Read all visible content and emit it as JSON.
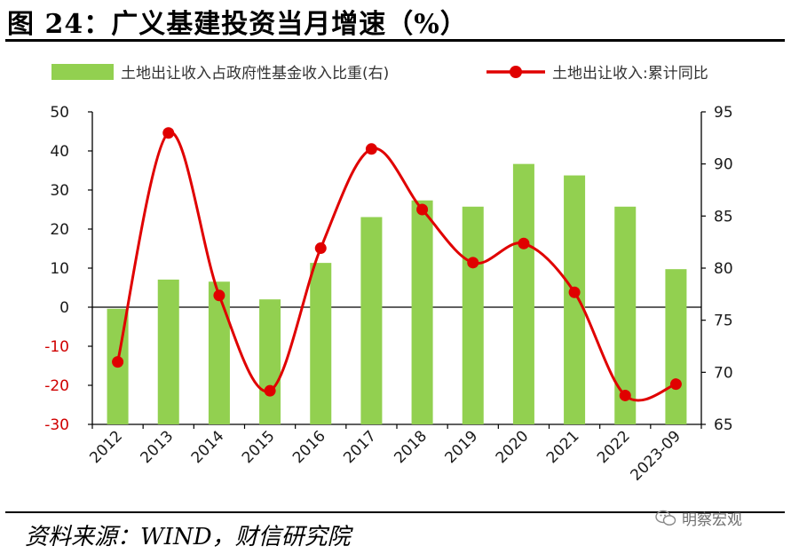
{
  "title": "图 24：广义基建投资当月增速（%）",
  "source": "资料来源：WIND，财信研究院",
  "watermark": "明察宏观",
  "colors": {
    "bar": "#92d050",
    "line": "#e00000",
    "negative_tick": "#d00000",
    "axis": "#000000"
  },
  "chart_data": {
    "type": "bar+line",
    "categories": [
      "2012",
      "2013",
      "2014",
      "2015",
      "2016",
      "2017",
      "2018",
      "2019",
      "2020",
      "2021",
      "2022",
      "2023-09"
    ],
    "series": [
      {
        "name": "土地出让收入占政府性基金收入比重(右)",
        "type": "bar",
        "axis": "right",
        "values": [
          76.1,
          78.9,
          78.7,
          77.0,
          80.5,
          84.9,
          86.5,
          85.9,
          90.0,
          88.9,
          85.9,
          79.9
        ]
      },
      {
        "name": "土地出让收入:累计同比",
        "type": "line",
        "axis": "left",
        "values": [
          -14.0,
          44.6,
          3.0,
          -21.4,
          15.1,
          40.5,
          25.0,
          11.4,
          16.3,
          3.8,
          -22.6,
          -19.7
        ]
      }
    ],
    "left_axis": {
      "min": -30,
      "max": 50,
      "ticks": [
        "50",
        "40",
        "30",
        "20",
        "10",
        "0",
        "-10",
        "-20",
        "-30"
      ]
    },
    "right_axis": {
      "min": 65,
      "max": 95,
      "ticks": [
        "95",
        "90",
        "85",
        "80",
        "75",
        "70",
        "65"
      ]
    },
    "grid": false,
    "legend_position": "top"
  }
}
